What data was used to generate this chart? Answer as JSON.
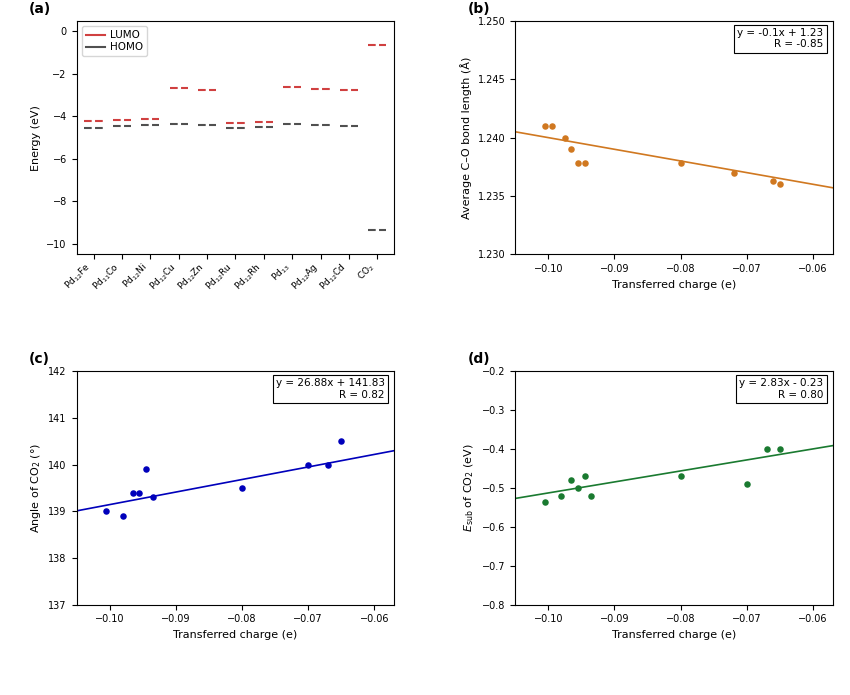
{
  "panel_a": {
    "labels": [
      "Pd$_{12}$Fe",
      "Pd$_{11}$Co",
      "Pd$_{12}$Ni",
      "Pd$_{12}$Cu",
      "Pd$_{12}$Zn",
      "Pd$_{12}$Ru",
      "Pd$_{12}$Rh",
      "Pd$_{13}$",
      "Pd$_{12}$Ag",
      "Pd$_{12}$Cd",
      "CO$_2$"
    ],
    "LUMO": [
      -4.2,
      -4.15,
      -4.1,
      -2.65,
      -2.75,
      -4.3,
      -4.25,
      -2.6,
      -2.7,
      -2.75,
      -0.65
    ],
    "HOMO": [
      -4.55,
      -4.45,
      -4.4,
      -4.35,
      -4.4,
      -4.55,
      -4.5,
      -4.35,
      -4.4,
      -4.45,
      -9.35
    ],
    "lumo_color": "#d04040",
    "homo_color": "#505050",
    "ylabel": "Energy (eV)",
    "ylim": [
      -10.5,
      0.5
    ],
    "yticks": [
      0,
      -2,
      -4,
      -6,
      -8,
      -10
    ]
  },
  "panel_b": {
    "x": [
      -0.1005,
      -0.0995,
      -0.0975,
      -0.0965,
      -0.0955,
      -0.0945,
      -0.08,
      -0.072,
      -0.066,
      -0.065
    ],
    "y": [
      1.241,
      1.241,
      1.24,
      1.239,
      1.2378,
      1.2378,
      1.2378,
      1.237,
      1.2363,
      1.236
    ],
    "color": "#d07820",
    "fit_slope": -0.1,
    "fit_intercept": 1.23,
    "equation": "y = -0.1x + 1.23",
    "R": "R = -0.85",
    "xlabel": "Transferred charge (e)",
    "ylabel": "Average C–O bond length (Å)",
    "xlim": [
      -0.105,
      -0.057
    ],
    "ylim": [
      1.23,
      1.25
    ],
    "xticks": [
      -0.1,
      -0.09,
      -0.08,
      -0.07,
      -0.06
    ],
    "yticks": [
      1.23,
      1.235,
      1.24,
      1.245,
      1.25
    ]
  },
  "panel_c": {
    "x": [
      -0.1005,
      -0.098,
      -0.0965,
      -0.0955,
      -0.0945,
      -0.0935,
      -0.08,
      -0.07,
      -0.067,
      -0.065
    ],
    "y": [
      139.0,
      138.9,
      139.4,
      139.4,
      139.9,
      139.3,
      139.5,
      140.0,
      140.0,
      140.5
    ],
    "color": "#0000bb",
    "fit_slope": 26.88,
    "fit_intercept": 141.83,
    "equation": "y = 26.88x + 141.83",
    "R": "R = 0.82",
    "xlabel": "Transferred charge (e)",
    "ylabel": "Angle of CO$_2$ (°)",
    "xlim": [
      -0.105,
      -0.057
    ],
    "ylim": [
      137,
      142
    ],
    "xticks": [
      -0.1,
      -0.09,
      -0.08,
      -0.07,
      -0.06
    ],
    "yticks": [
      137,
      138,
      139,
      140,
      141,
      142
    ]
  },
  "panel_d": {
    "x": [
      -0.1005,
      -0.098,
      -0.0965,
      -0.0955,
      -0.0945,
      -0.0935,
      -0.08,
      -0.07,
      -0.067,
      -0.065
    ],
    "y": [
      -0.535,
      -0.52,
      -0.48,
      -0.5,
      -0.47,
      -0.52,
      -0.47,
      -0.49,
      -0.4,
      -0.4
    ],
    "color": "#1a7a30",
    "fit_slope": 2.83,
    "fit_intercept": -0.23,
    "equation": "y = 2.83x - 0.23",
    "R": "R = 0.80",
    "xlabel": "Transferred charge (e)",
    "ylabel": "$E_{\\rm sub}$ of CO$_2$ (eV)",
    "xlim": [
      -0.105,
      -0.057
    ],
    "ylim": [
      -0.8,
      -0.2
    ],
    "xticks": [
      -0.1,
      -0.09,
      -0.08,
      -0.07,
      -0.06
    ],
    "yticks": [
      -0.8,
      -0.7,
      -0.6,
      -0.5,
      -0.4,
      -0.3,
      -0.2
    ]
  }
}
